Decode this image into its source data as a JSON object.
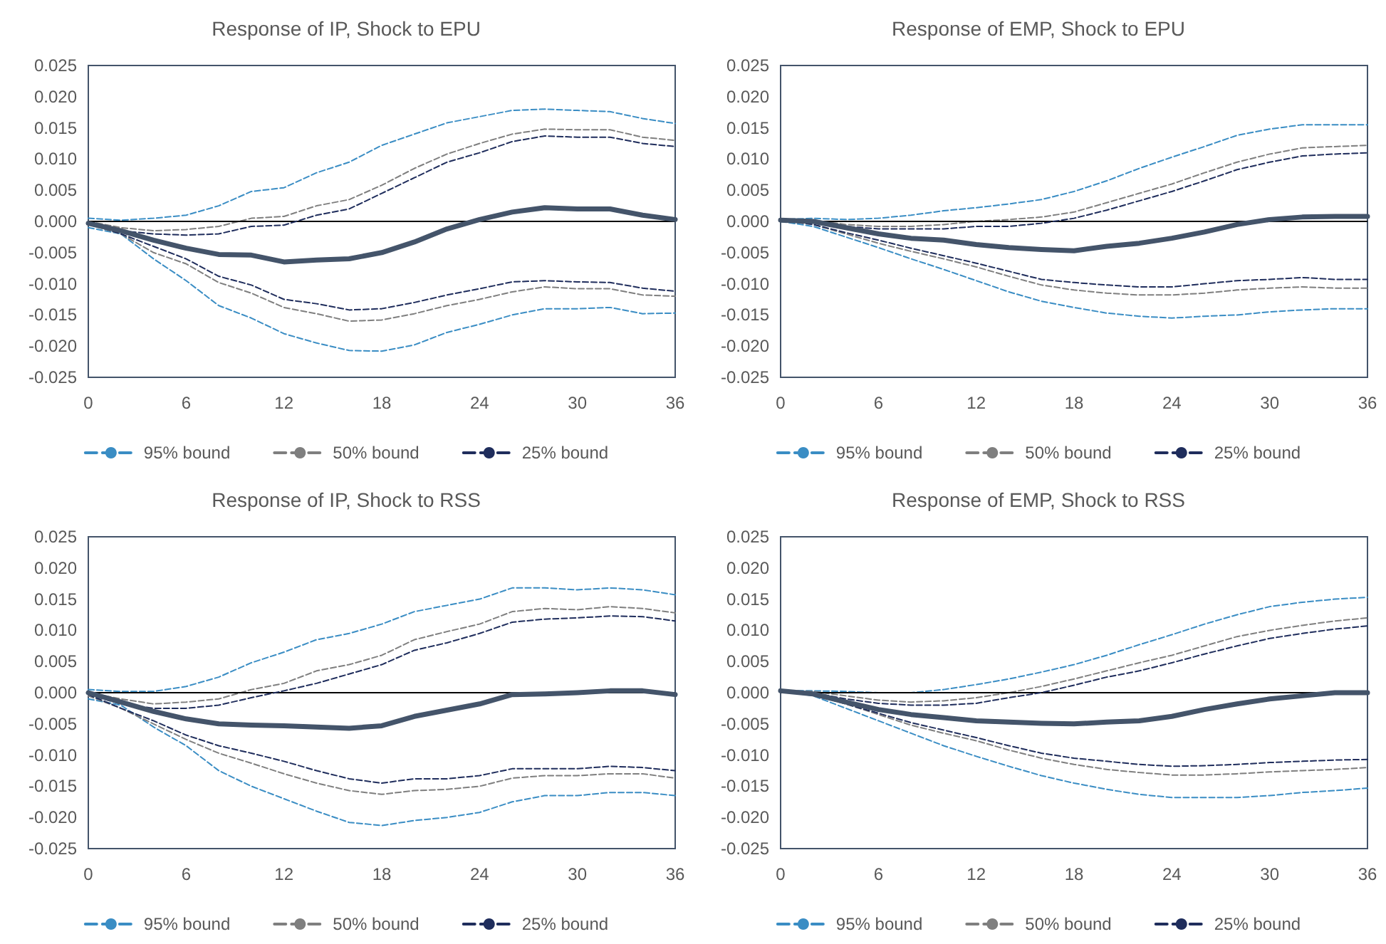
{
  "chart_data": [
    {
      "type": "line",
      "title": "Response of IP, Shock to EPU",
      "x": [
        0,
        2,
        4,
        6,
        8,
        10,
        12,
        14,
        16,
        18,
        20,
        22,
        24,
        26,
        28,
        30,
        32,
        34,
        36
      ],
      "xlim": [
        0,
        36
      ],
      "xticks": [
        0,
        6,
        12,
        18,
        24,
        30,
        36
      ],
      "ylim": [
        -0.025,
        0.025
      ],
      "yticks": [
        {
          "value": -0.025,
          "label": "-0.025"
        },
        {
          "value": -0.02,
          "label": "-0.020"
        },
        {
          "value": -0.015,
          "label": "-0.015"
        },
        {
          "value": -0.01,
          "label": "-0.010"
        },
        {
          "value": -0.005,
          "label": "-0.005"
        },
        {
          "value": 0,
          "label": "0.000"
        },
        {
          "value": 0.005,
          "label": "0.005"
        },
        {
          "value": 0.01,
          "label": "0.010"
        },
        {
          "value": 0.015,
          "label": "0.015"
        },
        {
          "value": 0.02,
          "label": "0.020"
        },
        {
          "value": 0.025,
          "label": "0.025"
        }
      ],
      "grid": false,
      "legend": "bottom",
      "marker": "none",
      "ref_lines": [
        {
          "axis": "y",
          "value": 0,
          "color": "#000000"
        }
      ],
      "series": [
        {
          "name": "95% bound",
          "color": "#3a8dc4",
          "line_style": "dashed",
          "values": [
            0.0005,
            0.0002,
            0.0005,
            0.001,
            0.0025,
            0.0048,
            0.0054,
            0.0078,
            0.0095,
            0.0122,
            0.014,
            0.0158,
            0.0168,
            0.0178,
            0.018,
            0.0178,
            0.0176,
            0.0165,
            0.0157
          ]
        },
        {
          "color": "#3a8dc4",
          "line_style": "dashed",
          "values": [
            -0.001,
            -0.002,
            -0.006,
            -0.0095,
            -0.0135,
            -0.0155,
            -0.018,
            -0.0195,
            -0.0207,
            -0.0208,
            -0.0198,
            -0.0178,
            -0.0165,
            -0.015,
            -0.014,
            -0.014,
            -0.0138,
            -0.0148,
            -0.0147
          ]
        },
        {
          "name": "50% bound",
          "color": "#7f7f7f",
          "line_style": "dashed",
          "values": [
            0,
            -0.001,
            -0.0015,
            -0.0013,
            -0.0008,
            0.0005,
            0.0008,
            0.0025,
            0.0035,
            0.0058,
            0.0085,
            0.0108,
            0.0125,
            0.014,
            0.0148,
            0.0147,
            0.0147,
            0.0135,
            0.013
          ]
        },
        {
          "color": "#7f7f7f",
          "line_style": "dashed",
          "values": [
            -0.0005,
            -0.002,
            -0.005,
            -0.0068,
            -0.0098,
            -0.0115,
            -0.0138,
            -0.0148,
            -0.016,
            -0.0158,
            -0.0148,
            -0.0135,
            -0.0125,
            -0.0113,
            -0.0105,
            -0.0108,
            -0.0108,
            -0.0118,
            -0.012
          ]
        },
        {
          "name": "25% bound",
          "color": "#1f2d5c",
          "line_style": "dashed",
          "values": [
            -0.0003,
            -0.0015,
            -0.002,
            -0.0022,
            -0.002,
            -0.0008,
            -0.0006,
            0.001,
            0.002,
            0.0045,
            0.007,
            0.0095,
            0.011,
            0.0128,
            0.0137,
            0.0135,
            0.0135,
            0.0125,
            0.012
          ]
        },
        {
          "color": "#1f2d5c",
          "line_style": "dashed",
          "values": [
            -0.0003,
            -0.002,
            -0.004,
            -0.006,
            -0.0088,
            -0.0102,
            -0.0125,
            -0.0132,
            -0.0142,
            -0.014,
            -0.013,
            -0.0118,
            -0.0108,
            -0.0097,
            -0.0095,
            -0.0097,
            -0.0098,
            -0.0107,
            -0.0112
          ]
        },
        {
          "color": "#44546a",
          "line_style": "solid",
          "values": [
            -0.0003,
            -0.0015,
            -0.003,
            -0.0043,
            -0.0053,
            -0.0054,
            -0.0065,
            -0.0062,
            -0.006,
            -0.005,
            -0.0033,
            -0.0012,
            0.0003,
            0.0015,
            0.0022,
            0.002,
            0.002,
            0.001,
            0.0003
          ]
        }
      ]
    },
    {
      "type": "line",
      "title": "Response of EMP, Shock to EPU",
      "x": [
        0,
        2,
        4,
        6,
        8,
        10,
        12,
        14,
        16,
        18,
        20,
        22,
        24,
        26,
        28,
        30,
        32,
        34,
        36
      ],
      "xlim": [
        0,
        36
      ],
      "xticks": [
        0,
        6,
        12,
        18,
        24,
        30,
        36
      ],
      "ylim": [
        -0.025,
        0.025
      ],
      "yticks": [
        {
          "value": -0.025,
          "label": "-0.025"
        },
        {
          "value": -0.02,
          "label": "-0.020"
        },
        {
          "value": -0.015,
          "label": "-0.015"
        },
        {
          "value": -0.01,
          "label": "-0.010"
        },
        {
          "value": -0.005,
          "label": "-0.005"
        },
        {
          "value": 0,
          "label": "0.000"
        },
        {
          "value": 0.005,
          "label": "0.005"
        },
        {
          "value": 0.01,
          "label": "0.010"
        },
        {
          "value": 0.015,
          "label": "0.015"
        },
        {
          "value": 0.02,
          "label": "0.020"
        },
        {
          "value": 0.025,
          "label": "0.025"
        }
      ],
      "grid": false,
      "legend": "bottom",
      "marker": "none",
      "ref_lines": [
        {
          "axis": "y",
          "value": 0,
          "color": "#000000"
        }
      ],
      "series": [
        {
          "name": "95% bound",
          "color": "#3a8dc4",
          "line_style": "dashed",
          "values": [
            0.0003,
            0.0005,
            0.0003,
            0.0005,
            0.001,
            0.0017,
            0.0022,
            0.0028,
            0.0035,
            0.0048,
            0.0065,
            0.0085,
            0.0103,
            0.012,
            0.0138,
            0.0148,
            0.0155,
            0.0155,
            0.0155
          ]
        },
        {
          "color": "#3a8dc4",
          "line_style": "dashed",
          "values": [
            0,
            -0.0008,
            -0.0025,
            -0.0042,
            -0.006,
            -0.0077,
            -0.0095,
            -0.0113,
            -0.0128,
            -0.0138,
            -0.0147,
            -0.0152,
            -0.0155,
            -0.0152,
            -0.015,
            -0.0145,
            -0.0142,
            -0.014,
            -0.014
          ]
        },
        {
          "name": "50% bound",
          "color": "#7f7f7f",
          "line_style": "dashed",
          "values": [
            0.0002,
            0.0002,
            -0.0005,
            -0.0008,
            -0.0008,
            -0.0005,
            0,
            0.0003,
            0.0007,
            0.0015,
            0.003,
            0.0045,
            0.006,
            0.0078,
            0.0095,
            0.0108,
            0.0118,
            0.012,
            0.0122
          ]
        },
        {
          "color": "#7f7f7f",
          "line_style": "dashed",
          "values": [
            0.0002,
            -0.0005,
            -0.002,
            -0.0035,
            -0.0048,
            -0.006,
            -0.0073,
            -0.0088,
            -0.0102,
            -0.011,
            -0.0115,
            -0.0118,
            -0.0118,
            -0.0115,
            -0.011,
            -0.0107,
            -0.0105,
            -0.0107,
            -0.0107
          ]
        },
        {
          "name": "25% bound",
          "color": "#1f2d5c",
          "line_style": "dashed",
          "values": [
            0.0002,
            0,
            -0.0008,
            -0.0012,
            -0.0012,
            -0.0012,
            -0.0008,
            -0.0008,
            -0.0003,
            0.0005,
            0.0018,
            0.0033,
            0.0048,
            0.0065,
            0.0083,
            0.0095,
            0.0105,
            0.0108,
            0.011
          ]
        },
        {
          "color": "#1f2d5c",
          "line_style": "dashed",
          "values": [
            0.0002,
            -0.0005,
            -0.0018,
            -0.003,
            -0.0043,
            -0.0055,
            -0.0067,
            -0.008,
            -0.0093,
            -0.0098,
            -0.0102,
            -0.0105,
            -0.0105,
            -0.01,
            -0.0095,
            -0.0093,
            -0.009,
            -0.0093,
            -0.0093
          ]
        },
        {
          "color": "#44546a",
          "line_style": "solid",
          "values": [
            0.0002,
            0,
            -0.001,
            -0.002,
            -0.0027,
            -0.003,
            -0.0037,
            -0.0042,
            -0.0045,
            -0.0047,
            -0.004,
            -0.0035,
            -0.0027,
            -0.0017,
            -0.0005,
            0.0003,
            0.0007,
            0.0008,
            0.0008
          ]
        }
      ]
    },
    {
      "type": "line",
      "title": "Response of IP, Shock to RSS",
      "x": [
        0,
        2,
        4,
        6,
        8,
        10,
        12,
        14,
        16,
        18,
        20,
        22,
        24,
        26,
        28,
        30,
        32,
        34,
        36
      ],
      "xlim": [
        0,
        36
      ],
      "xticks": [
        0,
        6,
        12,
        18,
        24,
        30,
        36
      ],
      "ylim": [
        -0.025,
        0.025
      ],
      "yticks": [
        {
          "value": -0.025,
          "label": "-0.025"
        },
        {
          "value": -0.02,
          "label": "-0.020"
        },
        {
          "value": -0.015,
          "label": "-0.015"
        },
        {
          "value": -0.01,
          "label": "-0.010"
        },
        {
          "value": -0.005,
          "label": "-0.005"
        },
        {
          "value": 0,
          "label": "0.000"
        },
        {
          "value": 0.005,
          "label": "0.005"
        },
        {
          "value": 0.01,
          "label": "0.010"
        },
        {
          "value": 0.015,
          "label": "0.015"
        },
        {
          "value": 0.02,
          "label": "0.020"
        },
        {
          "value": 0.025,
          "label": "0.025"
        }
      ],
      "grid": false,
      "legend": "bottom",
      "marker": "none",
      "ref_lines": [
        {
          "axis": "y",
          "value": 0,
          "color": "#000000"
        }
      ],
      "series": [
        {
          "name": "95% bound",
          "color": "#3a8dc4",
          "line_style": "dashed",
          "values": [
            0.0005,
            0.0002,
            0.0002,
            0.001,
            0.0025,
            0.0048,
            0.0065,
            0.0085,
            0.0095,
            0.011,
            0.013,
            0.014,
            0.015,
            0.0168,
            0.0168,
            0.0165,
            0.0168,
            0.0165,
            0.0157
          ]
        },
        {
          "color": "#3a8dc4",
          "line_style": "dashed",
          "values": [
            -0.001,
            -0.002,
            -0.0055,
            -0.0085,
            -0.0125,
            -0.015,
            -0.017,
            -0.019,
            -0.0208,
            -0.0213,
            -0.0205,
            -0.02,
            -0.0192,
            -0.0175,
            -0.0165,
            -0.0165,
            -0.016,
            -0.016,
            -0.0165
          ]
        },
        {
          "name": "50% bound",
          "color": "#7f7f7f",
          "line_style": "dashed",
          "values": [
            0,
            -0.001,
            -0.0018,
            -0.0015,
            -0.001,
            0.0005,
            0.0015,
            0.0035,
            0.0045,
            0.006,
            0.0085,
            0.0098,
            0.011,
            0.013,
            0.0135,
            0.0133,
            0.0138,
            0.0135,
            0.0128
          ]
        },
        {
          "color": "#7f7f7f",
          "line_style": "dashed",
          "values": [
            -0.0005,
            -0.0025,
            -0.005,
            -0.0075,
            -0.0097,
            -0.0113,
            -0.013,
            -0.0145,
            -0.0157,
            -0.0163,
            -0.0157,
            -0.0155,
            -0.015,
            -0.0137,
            -0.0133,
            -0.0133,
            -0.013,
            -0.013,
            -0.0137
          ]
        },
        {
          "name": "25% bound",
          "color": "#1f2d5c",
          "line_style": "dashed",
          "values": [
            -0.0003,
            -0.0018,
            -0.0025,
            -0.0025,
            -0.002,
            -0.0008,
            0.0003,
            0.0015,
            0.003,
            0.0045,
            0.0068,
            0.008,
            0.0095,
            0.0113,
            0.0118,
            0.012,
            0.0123,
            0.0122,
            0.0115
          ]
        },
        {
          "color": "#1f2d5c",
          "line_style": "dashed",
          "values": [
            -0.0003,
            -0.0025,
            -0.0045,
            -0.0068,
            -0.0085,
            -0.0097,
            -0.011,
            -0.0125,
            -0.0138,
            -0.0145,
            -0.0138,
            -0.0138,
            -0.0133,
            -0.0122,
            -0.0122,
            -0.0122,
            -0.0118,
            -0.012,
            -0.0125
          ]
        },
        {
          "color": "#44546a",
          "line_style": "solid",
          "values": [
            0,
            -0.0015,
            -0.003,
            -0.0042,
            -0.005,
            -0.0052,
            -0.0053,
            -0.0055,
            -0.0057,
            -0.0053,
            -0.0038,
            -0.0028,
            -0.0018,
            -0.0003,
            -0.0002,
            0,
            0.0003,
            0.0003,
            -0.0003
          ]
        }
      ]
    },
    {
      "type": "line",
      "title": "Response of EMP, Shock to RSS",
      "x": [
        0,
        2,
        4,
        6,
        8,
        10,
        12,
        14,
        16,
        18,
        20,
        22,
        24,
        26,
        28,
        30,
        32,
        34,
        36
      ],
      "xlim": [
        0,
        36
      ],
      "xticks": [
        0,
        6,
        12,
        18,
        24,
        30,
        36
      ],
      "ylim": [
        -0.025,
        0.025
      ],
      "yticks": [
        {
          "value": -0.025,
          "label": "-0.025"
        },
        {
          "value": -0.02,
          "label": "-0.020"
        },
        {
          "value": -0.015,
          "label": "-0.015"
        },
        {
          "value": -0.01,
          "label": "-0.010"
        },
        {
          "value": -0.005,
          "label": "-0.005"
        },
        {
          "value": 0,
          "label": "0.000"
        },
        {
          "value": 0.005,
          "label": "0.005"
        },
        {
          "value": 0.01,
          "label": "0.010"
        },
        {
          "value": 0.015,
          "label": "0.015"
        },
        {
          "value": 0.02,
          "label": "0.020"
        },
        {
          "value": 0.025,
          "label": "0.025"
        }
      ],
      "grid": false,
      "legend": "bottom",
      "marker": "none",
      "ref_lines": [
        {
          "axis": "y",
          "value": 0,
          "color": "#000000"
        }
      ],
      "series": [
        {
          "name": "95% bound",
          "color": "#3a8dc4",
          "line_style": "dashed",
          "values": [
            0.0003,
            0.0003,
            0.0002,
            0,
            0,
            0.0005,
            0.0013,
            0.0022,
            0.0033,
            0.0045,
            0.006,
            0.0077,
            0.0093,
            0.011,
            0.0125,
            0.0138,
            0.0145,
            0.015,
            0.0153
          ]
        },
        {
          "color": "#3a8dc4",
          "line_style": "dashed",
          "values": [
            0.0003,
            -0.0005,
            -0.0025,
            -0.0045,
            -0.0065,
            -0.0085,
            -0.0102,
            -0.0118,
            -0.0133,
            -0.0145,
            -0.0155,
            -0.0163,
            -0.0168,
            -0.0168,
            -0.0168,
            -0.0165,
            -0.016,
            -0.0157,
            -0.0153
          ]
        },
        {
          "name": "50% bound",
          "color": "#7f7f7f",
          "line_style": "dashed",
          "values": [
            0.0003,
            0.0002,
            -0.0005,
            -0.0012,
            -0.0015,
            -0.0013,
            -0.0008,
            0,
            0.001,
            0.0022,
            0.0035,
            0.0048,
            0.006,
            0.0075,
            0.009,
            0.01,
            0.0108,
            0.0115,
            0.012
          ]
        },
        {
          "color": "#7f7f7f",
          "line_style": "dashed",
          "values": [
            0.0003,
            -0.0003,
            -0.0018,
            -0.0035,
            -0.0052,
            -0.0065,
            -0.0077,
            -0.0092,
            -0.0105,
            -0.0115,
            -0.0123,
            -0.0128,
            -0.0132,
            -0.0132,
            -0.013,
            -0.0127,
            -0.0125,
            -0.0123,
            -0.012
          ]
        },
        {
          "name": "25% bound",
          "color": "#1f2d5c",
          "line_style": "dashed",
          "values": [
            0.0003,
            0,
            -0.001,
            -0.0017,
            -0.002,
            -0.002,
            -0.0017,
            -0.0008,
            0,
            0.0012,
            0.0025,
            0.0035,
            0.0048,
            0.0062,
            0.0075,
            0.0087,
            0.0095,
            0.0102,
            0.0107
          ]
        },
        {
          "color": "#1f2d5c",
          "line_style": "dashed",
          "values": [
            0.0003,
            -0.0003,
            -0.0018,
            -0.0033,
            -0.0048,
            -0.006,
            -0.0072,
            -0.0085,
            -0.0097,
            -0.0105,
            -0.011,
            -0.0115,
            -0.0118,
            -0.0117,
            -0.0115,
            -0.0112,
            -0.011,
            -0.0108,
            -0.0107
          ]
        },
        {
          "color": "#44546a",
          "line_style": "solid",
          "values": [
            0.0003,
            -0.0002,
            -0.0015,
            -0.0027,
            -0.0035,
            -0.004,
            -0.0045,
            -0.0047,
            -0.0049,
            -0.005,
            -0.0047,
            -0.0045,
            -0.0038,
            -0.0027,
            -0.0018,
            -0.001,
            -0.0005,
            0,
            0
          ]
        }
      ]
    }
  ]
}
